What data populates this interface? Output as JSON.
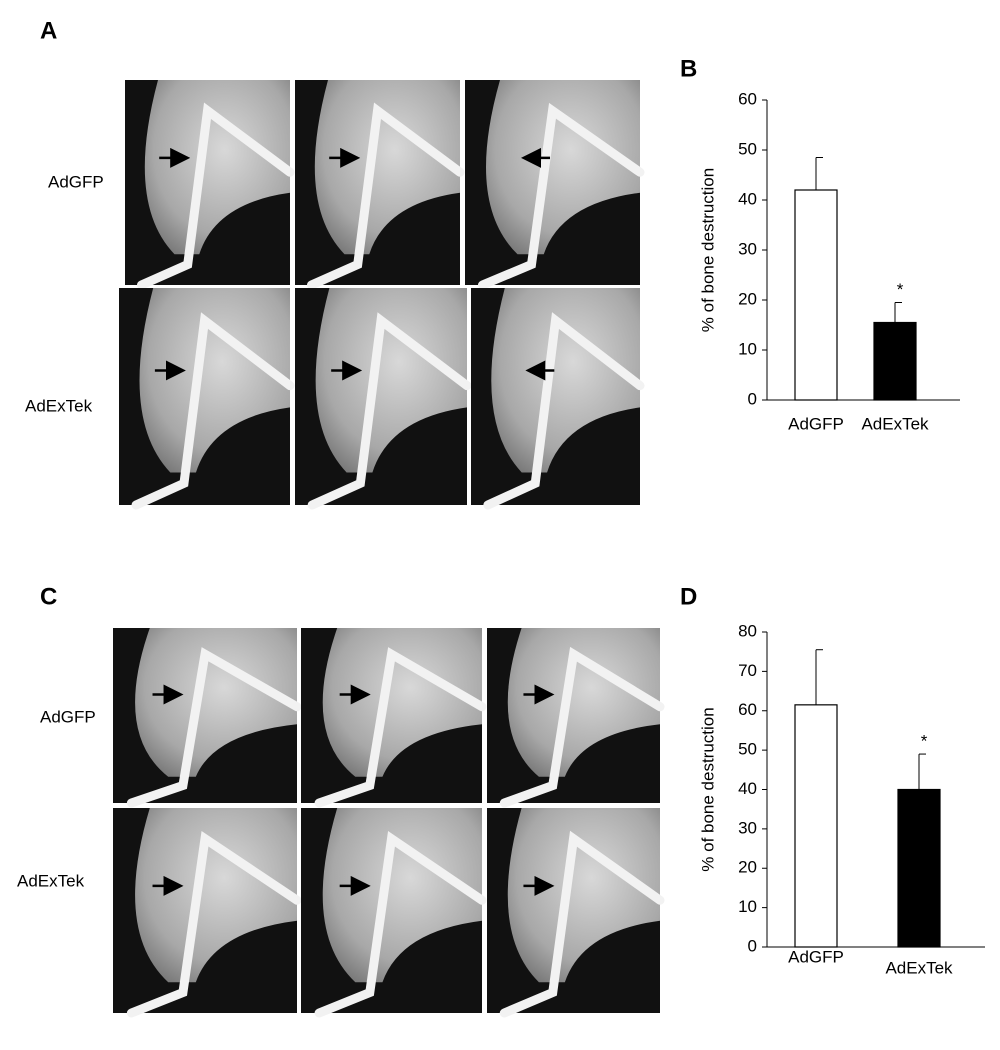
{
  "panel_labels": [
    "A",
    "B",
    "C",
    "D"
  ],
  "image_panels": [
    {
      "row_labels": [
        "AdGFP",
        "AdExTek"
      ]
    },
    {
      "row_labels": [
        "AdGFP",
        "AdExTek"
      ]
    }
  ],
  "charts": [
    {
      "type": "bar",
      "y_label": "% of bone destruction",
      "categories": [
        "AdGFP",
        "AdExTek"
      ],
      "values": [
        42,
        15.5
      ],
      "errors": [
        6.5,
        4
      ],
      "colors": [
        "#ffffff",
        "#000000"
      ],
      "annotations": [
        null,
        "*"
      ],
      "ylim": [
        0,
        60
      ],
      "yticks": [
        0,
        10,
        20,
        30,
        40,
        50,
        60
      ]
    },
    {
      "type": "bar",
      "y_label": "% of bone destruction",
      "categories": [
        "AdGFP",
        "AdExTek"
      ],
      "values": [
        61.5,
        40
      ],
      "errors": [
        14,
        9
      ],
      "colors": [
        "#ffffff",
        "#000000"
      ],
      "annotations": [
        null,
        "*"
      ],
      "ylim": [
        0,
        80
      ],
      "yticks": [
        0,
        10,
        20,
        30,
        40,
        50,
        60,
        70,
        80
      ]
    }
  ]
}
